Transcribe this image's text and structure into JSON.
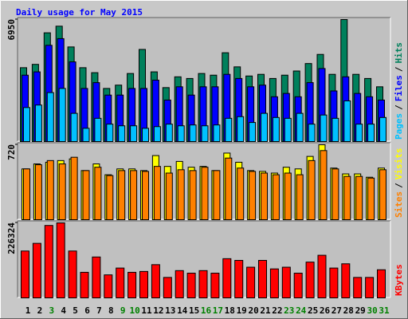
{
  "title": "Daily usage for May 2015",
  "chart_data": [
    {
      "type": "bar",
      "legend_separator": "/",
      "ylim": [
        0,
        6950
      ],
      "yticks": [
        6950
      ],
      "series": [
        {
          "name": "Hits",
          "color": "#00805c",
          "values": [
            4208,
            4397,
            6194,
            6572,
            5390,
            4208,
            3924,
            3026,
            3215,
            3877,
            5248,
            3971,
            3073,
            3688,
            3593,
            3877,
            3782,
            5059,
            4255,
            3735,
            3829,
            3593,
            3782,
            4019,
            4444,
            4964,
            3829,
            6950,
            3829,
            3593,
            3120
          ]
        },
        {
          "name": "Files",
          "color": "#0000ff",
          "values": [
            3782,
            3971,
            5484,
            5863,
            4539,
            3026,
            3357,
            2648,
            2648,
            3026,
            3026,
            3499,
            2364,
            3120,
            2648,
            3120,
            3120,
            3829,
            3593,
            3120,
            3215,
            2553,
            2742,
            2553,
            3357,
            4160,
            2884,
            3688,
            2742,
            2553,
            2364
          ]
        },
        {
          "name": "Pages",
          "color": "#00c0ff",
          "values": [
            1938,
            2080,
            2789,
            3026,
            1607,
            756,
            1324,
            993,
            898,
            898,
            756,
            851,
            993,
            898,
            946,
            898,
            946,
            1324,
            1418,
            1087,
            1607,
            1371,
            1324,
            1607,
            993,
            1513,
            1324,
            2317,
            993,
            993,
            1371
          ]
        }
      ]
    },
    {
      "type": "bar",
      "legend_separator": "/",
      "ylim": [
        0,
        720
      ],
      "yticks": [
        720
      ],
      "series": [
        {
          "name": "Visits",
          "color": "#ffff00",
          "values": [
            488,
            536,
            552,
            568,
            584,
            472,
            536,
            432,
            488,
            488,
            472,
            616,
            512,
            560,
            504,
            512,
            472,
            640,
            552,
            472,
            464,
            448,
            504,
            488,
            608,
            720,
            496,
            440,
            440,
            408,
            496
          ]
        },
        {
          "name": "Sites",
          "color": "#ff8000",
          "values": [
            488,
            528,
            568,
            536,
            600,
            472,
            504,
            424,
            472,
            472,
            464,
            512,
            448,
            480,
            472,
            504,
            472,
            592,
            496,
            464,
            448,
            432,
            448,
            432,
            568,
            664,
            488,
            416,
            416,
            400,
            480
          ]
        }
      ]
    },
    {
      "type": "bar",
      "ylim": [
        0,
        226324
      ],
      "yticks": [
        226324
      ],
      "categories": [
        "1",
        "2",
        "3",
        "4",
        "5",
        "6",
        "7",
        "8",
        "9",
        "10",
        "11",
        "12",
        "13",
        "14",
        "15",
        "16",
        "17",
        "18",
        "19",
        "20",
        "21",
        "22",
        "23",
        "24",
        "25",
        "26",
        "27",
        "28",
        "29",
        "30",
        "31"
      ],
      "category_colors": [
        "#000000",
        "#000000",
        "#008000",
        "#000000",
        "#000000",
        "#000000",
        "#000000",
        "#000000",
        "#008000",
        "#008000",
        "#000000",
        "#000000",
        "#000000",
        "#000000",
        "#000000",
        "#008000",
        "#008000",
        "#000000",
        "#000000",
        "#000000",
        "#000000",
        "#000000",
        "#008000",
        "#008000",
        "#000000",
        "#000000",
        "#000000",
        "#000000",
        "#000000",
        "#008000",
        "#008000"
      ],
      "series": [
        {
          "name": "KBytes",
          "color": "#ff0000",
          "values": [
            141453,
            164600,
            218608,
            226324,
            141453,
            77156,
            123450,
            69440,
            90015,
            77156,
            79728,
            100302,
            61725,
            82300,
            74584,
            82300,
            74584,
            118306,
            113162,
            92587,
            113162,
            87443,
            92587,
            74584,
            108019,
            128594,
            90015,
            102874,
            61725,
            61725,
            84871
          ]
        }
      ]
    }
  ]
}
